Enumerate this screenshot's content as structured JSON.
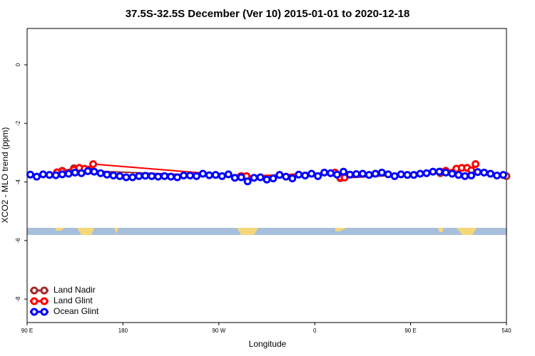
{
  "chart_data": {
    "type": "line",
    "title": "37.5S-32.5S December (Ver 10)   2015-01-01 to 2020-12-18",
    "x_label": "Longitude",
    "y_label": "XCO2 - MLO trend (ppm)",
    "xlim": [
      90,
      540
    ],
    "xticks": [
      {
        "value": 90,
        "label": "90 E"
      },
      180,
      {
        "value": 270,
        "label": "90 W"
      },
      {
        "value": 360,
        "label": "0"
      },
      {
        "value": 450,
        "label": "90 E"
      },
      540
    ],
    "ylim": [
      -8.8,
      1.24
    ],
    "yticks": [
      0,
      -2,
      -4,
      -6,
      -8
    ],
    "legend": "bottom-left",
    "series": [
      {
        "name": "Land Nadir",
        "color": "#a52a2a",
        "x": [
          118,
          123,
          134,
          144,
          148,
          290,
          380,
          384,
          478,
          493,
          507,
          540
        ],
        "values": [
          -3.7,
          -3.62,
          -3.53,
          -3.6,
          -3.62,
          -3.82,
          -3.72,
          -3.87,
          -3.7,
          -3.55,
          -3.62,
          -3.8
        ]
      },
      {
        "name": "Land Glint",
        "color": "#ff0000",
        "x": [
          118,
          123,
          134,
          139,
          144,
          148,
          152,
          291,
          296,
          379,
          384,
          388,
          478,
          483,
          493,
          498,
          503,
          507,
          511
        ],
        "values": [
          -3.67,
          -3.64,
          -3.58,
          -3.52,
          -3.55,
          -3.58,
          -3.39,
          -3.8,
          -3.8,
          -3.68,
          -3.85,
          -3.85,
          -3.65,
          -3.62,
          -3.55,
          -3.52,
          -3.52,
          -3.6,
          -3.39
        ]
      },
      {
        "name": "Ocean Glint",
        "color": "#0000ff",
        "x": [
          93,
          99,
          105,
          111,
          117,
          123,
          129,
          135,
          141,
          147,
          153,
          159,
          165,
          171,
          177,
          183,
          189,
          195,
          201,
          207,
          213,
          219,
          225,
          231,
          237,
          243,
          249,
          255,
          261,
          267,
          273,
          279,
          285,
          291,
          297,
          303,
          309,
          315,
          321,
          327,
          333,
          339,
          345,
          351,
          357,
          363,
          369,
          375,
          381,
          387,
          393,
          399,
          405,
          411,
          417,
          423,
          429,
          435,
          441,
          447,
          453,
          459,
          465,
          471,
          477,
          483,
          489,
          495,
          501,
          507,
          513,
          519,
          525,
          531,
          537
        ],
        "values": [
          -3.75,
          -3.82,
          -3.74,
          -3.76,
          -3.77,
          -3.74,
          -3.72,
          -3.68,
          -3.7,
          -3.63,
          -3.65,
          -3.7,
          -3.75,
          -3.78,
          -3.8,
          -3.84,
          -3.84,
          -3.8,
          -3.79,
          -3.8,
          -3.82,
          -3.8,
          -3.82,
          -3.84,
          -3.78,
          -3.78,
          -3.8,
          -3.72,
          -3.77,
          -3.76,
          -3.8,
          -3.74,
          -3.86,
          -3.84,
          -3.98,
          -3.86,
          -3.84,
          -3.92,
          -3.88,
          -3.76,
          -3.82,
          -3.88,
          -3.75,
          -3.78,
          -3.72,
          -3.8,
          -3.68,
          -3.7,
          -3.75,
          -3.65,
          -3.75,
          -3.73,
          -3.72,
          -3.76,
          -3.72,
          -3.68,
          -3.74,
          -3.8,
          -3.74,
          -3.76,
          -3.76,
          -3.72,
          -3.7,
          -3.65,
          -3.65,
          -3.68,
          -3.72,
          -3.76,
          -3.8,
          -3.78,
          -3.66,
          -3.68,
          -3.72,
          -3.78,
          -3.76
        ]
      }
    ]
  }
}
